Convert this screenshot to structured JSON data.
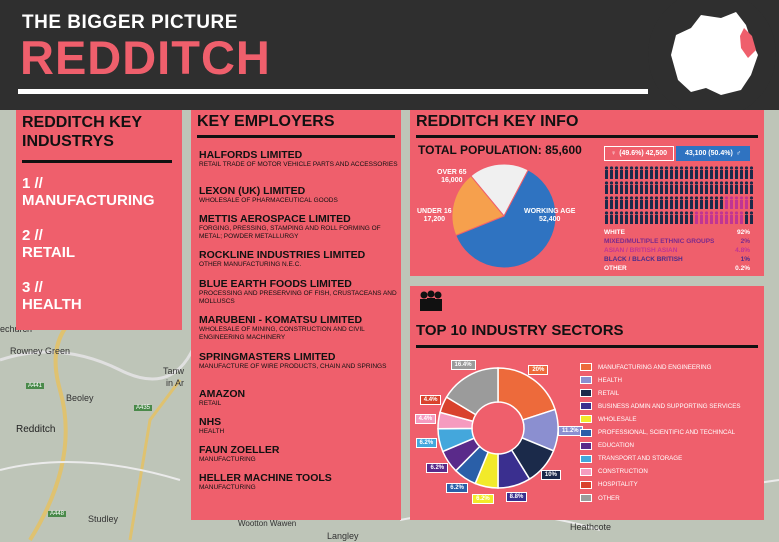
{
  "header": {
    "eyebrow": "THE BIGGER PICTURE",
    "title": "REDDITCH"
  },
  "map_labels": {
    "place1": "echurch",
    "place2": "Rowney Green",
    "place3": "Beoley",
    "place4": "Redditch",
    "place5": "Studley",
    "place6": "Tanw",
    "place7": "in Ar",
    "place8": "Wootton Wawen",
    "place9": "Langley",
    "place10": "Heathcote",
    "road1": "A441",
    "road2": "A435",
    "road3": "A448"
  },
  "industries": {
    "heading": "REDDITCH KEY INDUSTRYS",
    "items": [
      {
        "num": "1 //",
        "name": "MANUFACTURING"
      },
      {
        "num": "2 //",
        "name": "RETAIL"
      },
      {
        "num": "3 //",
        "name": "HEALTH"
      }
    ]
  },
  "employers": {
    "heading": "KEY EMPLOYERS",
    "items": [
      {
        "name": "HALFORDS LIMITED",
        "desc": "RETAIL TRADE OF MOTOR VEHICLE PARTS AND ACCESSORIES"
      },
      {
        "name": "LEXON (UK) LIMITED",
        "desc": "WHOLESALE OF PHARMACEUTICAL GOODS"
      },
      {
        "name": "METTIS AEROSPACE LIMITED",
        "desc": "FORGING, PRESSING, STAMPING AND ROLL FORMING OF METAL; POWDER METALLURGY"
      },
      {
        "name": "ROCKLINE INDUSTRIES LIMITED",
        "desc": "OTHER MANUFACTURING N.E.C."
      },
      {
        "name": "BLUE EARTH FOODS LIMITED",
        "desc": "PROCESSING AND PRESERVING OF FISH, CRUSTACEANS AND MOLLUSCS"
      },
      {
        "name": "MARUBENI - KOMATSU LIMITED",
        "desc": "WHOLESALE OF MINING, CONSTRUCTION AND CIVIL ENGINEERING MACHINERY"
      },
      {
        "name": "SPRINGMASTERS LIMITED",
        "desc": "MANUFACTURE OF WIRE PRODUCTS, CHAIN AND SPRINGS"
      },
      {
        "name": "AMAZON",
        "desc": "RETAIL"
      },
      {
        "name": "NHS",
        "desc": "HEALTH"
      },
      {
        "name": "FAUN ZOELLER",
        "desc": "MANUFACTURING"
      },
      {
        "name": "HELLER MACHINE TOOLS",
        "desc": "MANUFACTURING"
      }
    ]
  },
  "key_info": {
    "heading": "REDDITCH KEY INFO",
    "population_label": "TOTAL POPULATION: 85,600",
    "over65": {
      "label": "OVER 65",
      "value": "16,000",
      "n": 16000
    },
    "under16": {
      "label": "UNDER 16",
      "value": "17,200",
      "n": 17200
    },
    "working": {
      "label": "WORKING AGE",
      "value": "52,400",
      "n": 52400
    },
    "female": "(49.6%) 42,500",
    "male": "43,100 (50.4%)",
    "ethnicity": [
      {
        "group": "WHITE",
        "pct": "92%",
        "color": "#ffffff"
      },
      {
        "group": "MIXED/MULTIPLE ETHNIC GROUPS",
        "pct": "2%",
        "color": "#7b2a8c"
      },
      {
        "group": "ASIAN / BRITISH ASIAN",
        "pct": "4.8%",
        "color": "#c13593"
      },
      {
        "group": "BLACK / BLACK BRITISH",
        "pct": "1%",
        "color": "#4b2c8c"
      },
      {
        "group": "OTHER",
        "pct": "0.2%",
        "color": "#ffffff"
      }
    ],
    "colors": {
      "over65": "#f0f0f0",
      "under16": "#f6a04d",
      "working": "#2f73c1",
      "people_main": "#1b2a4a",
      "people_alt": "#c13593"
    }
  },
  "sectors": {
    "heading": "TOP 10 INDUSTRY SECTORS",
    "chart_data": {
      "type": "pie",
      "title": "TOP 10 INDUSTRY SECTORS",
      "categories": [
        "MANUFACTURING AND ENGINEERING",
        "HEALTH",
        "RETAIL",
        "BUSINESS ADMIN AND SUPPORTING SERVICES",
        "WHOLESALE",
        "PROFESSIONAL, SCIENTIFIC AND TECHINCAL",
        "EDUCATION",
        "TRANSPORT AND STORAGE",
        "CONSTRUCTION",
        "HOSPITALITY",
        "OTHER"
      ],
      "values": [
        20,
        11.2,
        10,
        8.8,
        6.2,
        6.2,
        6.2,
        6.2,
        4.4,
        4.4,
        16.4
      ],
      "labels": [
        "20%",
        "11.2%",
        "10%",
        "8.8%",
        "6.2%",
        "6.2%",
        "6.2%",
        "6.2%",
        "4.4%",
        "4.4%",
        "16.4%"
      ],
      "colors": [
        "#ed6a3b",
        "#8b8fd0",
        "#1b2a4a",
        "#3a2f8f",
        "#f2ea2a",
        "#2a5fa8",
        "#5a2a8a",
        "#44a7dc",
        "#f59bbf",
        "#d9422d",
        "#9b9b9b"
      ]
    }
  }
}
